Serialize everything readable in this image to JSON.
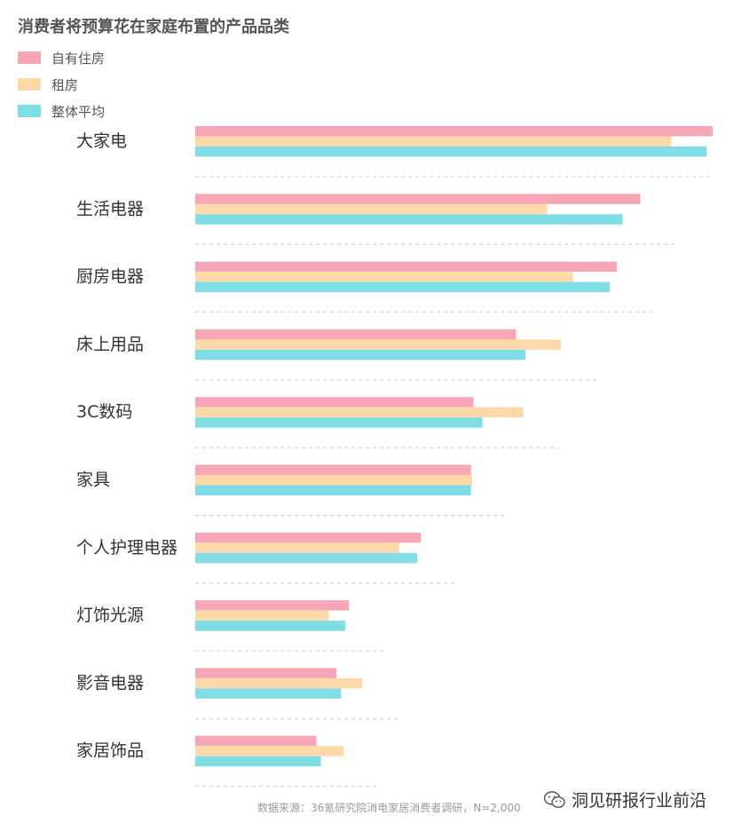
{
  "colors": {
    "own_home": "#F7A6B8",
    "rent": "#FDD8A8",
    "overall": "#7FDDE6",
    "grid": "#cccccc",
    "category_text": "#333333"
  },
  "source_text": "数据来源：36氪研究院消电家居消费者调研，N=2,000",
  "watermark": {
    "icon": "wechat-icon",
    "text": "洞见研报行业前沿"
  },
  "chart_data": {
    "type": "bar",
    "orientation": "horizontal",
    "title": "消费者将预算花在家庭布置的产品品类",
    "categories": [
      "大家电",
      "生活电器",
      "厨房电器",
      "床上用品",
      "3C数码",
      "家具",
      "个人护理电器",
      "灯饰光源",
      "影音电器",
      "家居饰品"
    ],
    "series": [
      {
        "name": "自有住房",
        "values": [
          100,
          86,
          81.5,
          62,
          53.8,
          53.3,
          43.6,
          29.7,
          27.3,
          23.4
        ]
      },
      {
        "name": "租房",
        "values": [
          92,
          68,
          73,
          70.6,
          63.4,
          53.5,
          39.4,
          25.8,
          32.3,
          28.7
        ]
      },
      {
        "name": "整体平均",
        "values": [
          98.8,
          82.6,
          80.1,
          63.8,
          55.5,
          53.3,
          42.9,
          29,
          28.2,
          24.3
        ]
      }
    ],
    "xlim": [
      0,
      100
    ],
    "legend_position": "top-left",
    "grid": false,
    "data_labels": false
  }
}
